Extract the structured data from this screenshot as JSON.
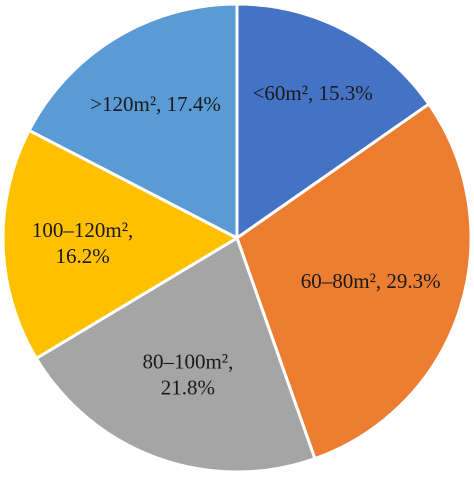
{
  "chart_data": {
    "type": "pie",
    "start_angle_deg": 0,
    "direction": "clockwise",
    "slices": [
      {
        "label": [
          "<60m², 15.3%"
        ],
        "value": 15.3,
        "color": "#4472C4"
      },
      {
        "label": [
          "60–80m², 29.3%"
        ],
        "value": 29.3,
        "color": "#ED7D31"
      },
      {
        "label": [
          "80–100m²,",
          "21.8%"
        ],
        "value": 21.8,
        "color": "#A5A5A5"
      },
      {
        "label": [
          "100–120m²,",
          "16.2%"
        ],
        "value": 16.2,
        "color": "#FFC000"
      },
      {
        "label": [
          ">120m², 17.4%"
        ],
        "value": 17.4,
        "color": "#5B9BD5"
      }
    ],
    "slice_border_color": "#ffffff"
  }
}
